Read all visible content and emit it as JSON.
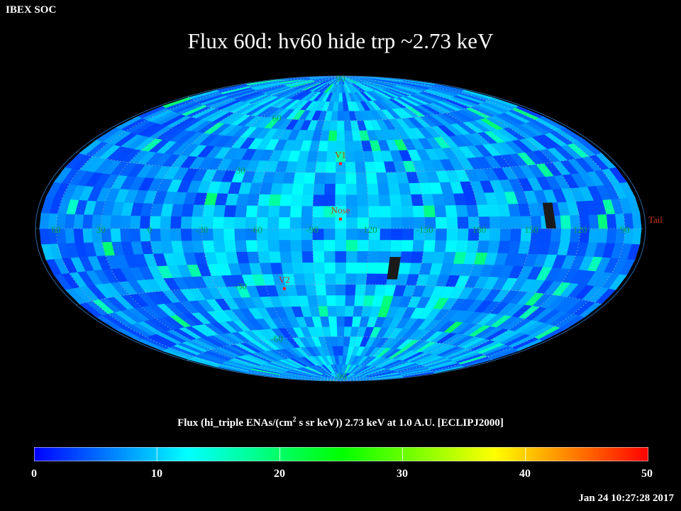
{
  "header": {
    "corner_label": "IBEX SOC",
    "title": "Flux   60d: hv60 hide trp ~2.73 keV"
  },
  "chart_data": {
    "type": "heatmap",
    "projection": "Hammer-Aitoff",
    "frame": "ECLIPJ2000",
    "grid": true,
    "longitude_labels": [
      "60",
      "30",
      "0",
      "-30",
      "-60",
      "-90",
      "-120",
      "-150",
      "180",
      "150",
      "120",
      "90"
    ],
    "latitude_labels": [
      "90",
      "60",
      "30",
      "-30",
      "-60",
      "-90"
    ],
    "markers": [
      {
        "name": "V1",
        "lon": 255,
        "lat": 35
      },
      {
        "name": "Nose",
        "lon": 255,
        "lat": 5
      },
      {
        "name": "V2",
        "lon": 289,
        "lat": -32
      }
    ],
    "edge_label": "Tail",
    "colorbar": {
      "min": 0,
      "max": 50,
      "ticks": [
        "0",
        "10",
        "20",
        "30",
        "40",
        "50"
      ],
      "colormap": [
        "#0000ff",
        "#00ffff",
        "#00ff00",
        "#ffff00",
        "#ff0000"
      ],
      "title_prefix": "Flux (hi_triple ENAs/(cm",
      "title_sup": "2",
      "title_suffix": " s sr keV))  2.73 keV at 1.0 A.U. [ECLIPJ2000]"
    },
    "typical_flux": 8,
    "flux_range_shown": [
      3,
      20
    ],
    "colors": {
      "background": "#000000",
      "grid": "#9ab0c0",
      "graticule_label": "#00a050",
      "marker": "#ff2020",
      "marker_label": "#d03020",
      "no_data": "#1a1a1a"
    }
  },
  "footer": {
    "timestamp": "Jan 24 10:27:28 2017"
  }
}
